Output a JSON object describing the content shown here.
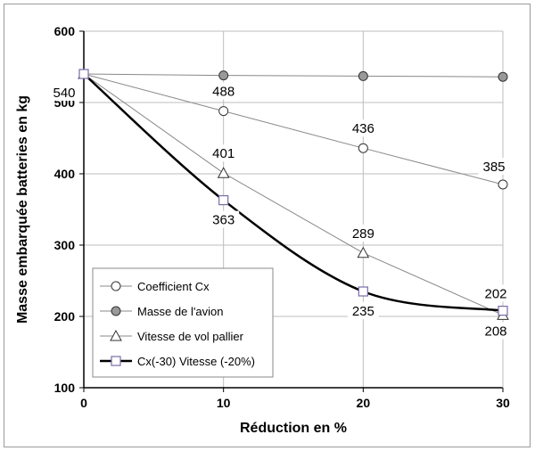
{
  "chart_data": {
    "type": "line",
    "xlabel": "Réduction en %",
    "ylabel": "Masse embarquée batteries en kg",
    "x": [
      0,
      10,
      20,
      30
    ],
    "xlim": [
      0,
      30
    ],
    "ylim": [
      100,
      600
    ],
    "x_ticks": [
      "0",
      "10",
      "20",
      "30"
    ],
    "y_ticks": [
      "100",
      "200",
      "300",
      "400",
      "500",
      "600"
    ],
    "grid": true,
    "legend_position": "bottom-left",
    "series": [
      {
        "name": "Coefficient Cx",
        "values": [
          540,
          488,
          436,
          385
        ],
        "marker": "circle-open",
        "line_color": "#888888",
        "fill": "#ffffff",
        "stroke": "#333333",
        "smooth": false,
        "width": 1,
        "labels": [
          "",
          "488",
          "436",
          "385"
        ]
      },
      {
        "name": "Masse de l'avion",
        "values": [
          540,
          538,
          537,
          536
        ],
        "marker": "circle-filled",
        "line_color": "#888888",
        "fill": "#999999",
        "stroke": "#333333",
        "smooth": false,
        "width": 1,
        "labels": [
          "540",
          "",
          "",
          ""
        ]
      },
      {
        "name": "Vitesse de vol pallier",
        "values": [
          540,
          401,
          289,
          202
        ],
        "marker": "triangle-open",
        "line_color": "#888888",
        "fill": "#ffffff",
        "stroke": "#333333",
        "smooth": false,
        "width": 1,
        "labels": [
          "",
          "401",
          "289",
          "202"
        ]
      },
      {
        "name": "Cx(-30) Vitesse (-20%)",
        "values": [
          540,
          363,
          235,
          208
        ],
        "marker": "square-open",
        "line_color": "#000000",
        "fill": "#ffffff",
        "stroke": "#7a6aa8",
        "smooth": true,
        "width": 2.5,
        "labels": [
          "",
          "363",
          "235",
          "208"
        ]
      }
    ]
  }
}
